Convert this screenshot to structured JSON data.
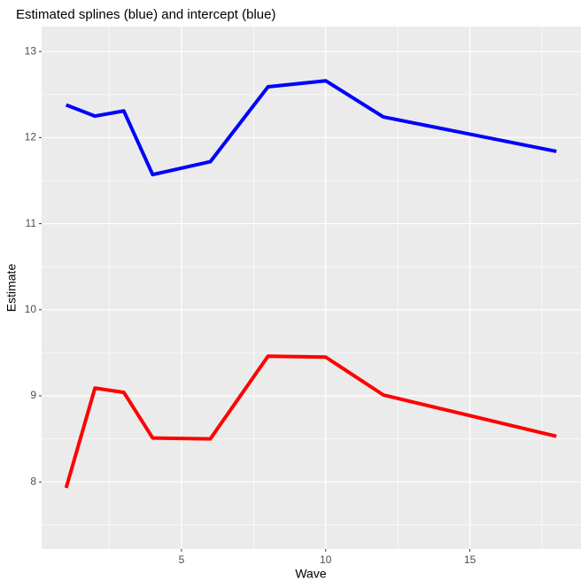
{
  "chart_data": {
    "type": "line",
    "title": "Estimated splines (blue) and intercept (blue)",
    "x_label": "Wave",
    "y_label": "Estimate",
    "x": [
      1,
      2,
      3,
      4,
      6,
      8,
      10,
      12,
      18
    ],
    "series": [
      {
        "color": "#0000ff",
        "values": [
          12.38,
          12.25,
          12.31,
          11.57,
          11.72,
          12.59,
          12.66,
          12.24,
          11.84
        ]
      },
      {
        "color": "#ff0000",
        "values": [
          7.93,
          9.09,
          9.04,
          8.51,
          8.5,
          9.46,
          9.45,
          9.01,
          8.53
        ]
      }
    ],
    "xlim": [
      0.15,
      18.85
    ],
    "xticks": [
      5,
      10,
      15
    ],
    "ylim": [
      7.22,
      13.29
    ],
    "yticks": [
      8,
      9,
      10,
      11,
      12,
      13
    ],
    "grid": true
  }
}
